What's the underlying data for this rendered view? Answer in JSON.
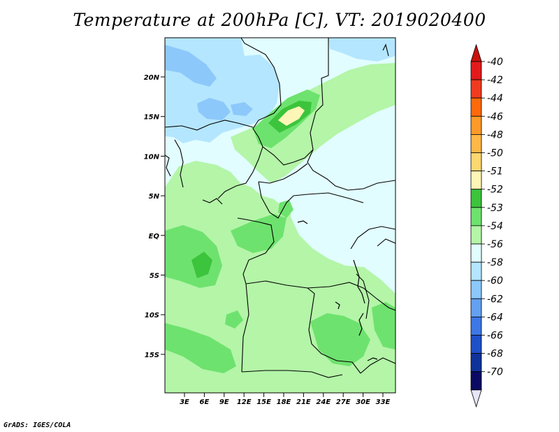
{
  "title": "Temperature at 200hPa [C], VT: 2019020400",
  "footer": "GrADS: IGES/COLA",
  "map": {
    "lat_labels": [
      "20N",
      "15N",
      "10N",
      "5N",
      "EQ",
      "5S",
      "10S",
      "15S"
    ],
    "lon_labels": [
      "3E",
      "6E",
      "9E",
      "12E",
      "15E",
      "18E",
      "21E",
      "24E",
      "27E",
      "30E",
      "33E"
    ]
  },
  "colorbar": {
    "labels": [
      "-40",
      "-42",
      "-44",
      "-46",
      "-48",
      "-50",
      "-51",
      "-52",
      "-53",
      "-54",
      "-56",
      "-58",
      "-60",
      "-62",
      "-64",
      "-66",
      "-68",
      "-70"
    ],
    "colors": [
      "#e31a1c",
      "#f03b20",
      "#fd6a0b",
      "#fd9a29",
      "#feb847",
      "#fdd770",
      "#fef6b6",
      "#3cc43c",
      "#6ee26e",
      "#b4f5a8",
      "#e1fdff",
      "#b4e6ff",
      "#8cc8fa",
      "#64a0f0",
      "#3c78e6",
      "#1e50c8",
      "#0f329b",
      "#0a0a64"
    ],
    "top_arrow_color": "#c8140c",
    "bottom_arrow_color": "#e6e6f8"
  }
}
